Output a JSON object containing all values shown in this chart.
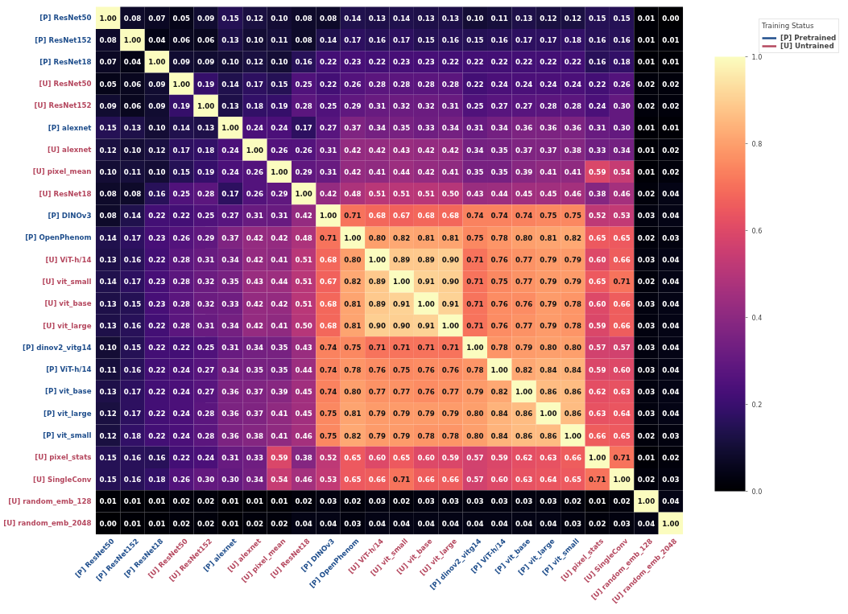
{
  "chart_data": {
    "type": "heatmap",
    "categories": [
      "[P] ResNet50",
      "[P] ResNet152",
      "[P] ResNet18",
      "[U] ResNet50",
      "[U] ResNet152",
      "[P] alexnet",
      "[U] alexnet",
      "[U] pixel_mean",
      "[U] ResNet18",
      "[P] DINOv3",
      "[P] OpenPhenom",
      "[U] ViT-h/14",
      "[U] vit_small",
      "[U] vit_base",
      "[U] vit_large",
      "[P] dinov2_vitg14",
      "[P] ViT-h/14",
      "[P] vit_base",
      "[P] vit_large",
      "[P] vit_small",
      "[U] pixel_stats",
      "[U] SingleConv",
      "[U] random_emb_128",
      "[U] random_emb_2048"
    ],
    "y_categories": [
      "[P] ResNet50",
      "[P] ResNet152",
      "[P] ResNet18",
      "[U] ResNet50",
      "[U] ResNet152",
      "[P] alexnet",
      "[U] alexnet",
      "[U] pixel_mean",
      "[U] ResNet18",
      "[P] DINOv3",
      "[P] OpenPhenom",
      "[U] ViT-h/14",
      "[U] vit_small",
      "[U] vit_base",
      "[U] vit_large",
      "[P] dinov2_vitg14",
      "[P] ViT-h/14",
      "[P] vit_base",
      "[P] vit_large",
      "[P] vit_small",
      "[U] pixel_stats",
      "[U] SingleConv",
      "[U] random_emb_128",
      "[U] random_emb_2048"
    ],
    "colors": [
      "#1f4e8c",
      "#1f4e8c",
      "#1f4e8c",
      "#b5485f",
      "#b5485f",
      "#1f4e8c",
      "#b5485f",
      "#b5485f",
      "#b5485f",
      "#1f4e8c",
      "#1f4e8c",
      "#b5485f",
      "#b5485f",
      "#b5485f",
      "#b5485f",
      "#1f4e8c",
      "#1f4e8c",
      "#1f4e8c",
      "#1f4e8c",
      "#1f4e8c",
      "#b5485f",
      "#b5485f",
      "#b5485f",
      "#b5485f"
    ],
    "annotations": [
      "[P] Pretrained",
      "[U] Untrained"
    ],
    "legend_title": "Training Status",
    "data_labels": true,
    "cell_labels": [
      [
        "1.00",
        "0.08",
        "0.07",
        "0.05",
        "0.09",
        "0.15",
        "0.12",
        "0.10",
        "0.08",
        "0.08",
        "0.14",
        "0.13",
        "0.14",
        "0.13",
        "0.13",
        "0.10",
        "0.11",
        "0.13",
        "0.12",
        "0.12",
        "0.15",
        "0.15",
        "0.01",
        "0.00"
      ],
      [
        "0.08",
        "1.00",
        "0.04",
        "0.06",
        "0.06",
        "0.13",
        "0.10",
        "0.11",
        "0.08",
        "0.14",
        "0.17",
        "0.16",
        "0.17",
        "0.15",
        "0.16",
        "0.15",
        "0.16",
        "0.17",
        "0.17",
        "0.18",
        "0.16",
        "0.16",
        "0.01",
        "0.01"
      ],
      [
        "0.07",
        "0.04",
        "1.00",
        "0.09",
        "0.09",
        "0.10",
        "0.12",
        "0.10",
        "0.16",
        "0.22",
        "0.23",
        "0.22",
        "0.23",
        "0.23",
        "0.22",
        "0.22",
        "0.22",
        "0.22",
        "0.22",
        "0.22",
        "0.16",
        "0.18",
        "0.01",
        "0.01"
      ],
      [
        "0.05",
        "0.06",
        "0.09",
        "1.00",
        "0.19",
        "0.14",
        "0.17",
        "0.15",
        "0.25",
        "0.22",
        "0.26",
        "0.28",
        "0.28",
        "0.28",
        "0.28",
        "0.22",
        "0.24",
        "0.24",
        "0.24",
        "0.24",
        "0.22",
        "0.26",
        "0.02",
        "0.02"
      ],
      [
        "0.09",
        "0.06",
        "0.09",
        "0.19",
        "1.00",
        "0.13",
        "0.18",
        "0.19",
        "0.28",
        "0.25",
        "0.29",
        "0.31",
        "0.32",
        "0.32",
        "0.31",
        "0.25",
        "0.27",
        "0.27",
        "0.28",
        "0.28",
        "0.24",
        "0.30",
        "0.02",
        "0.02"
      ],
      [
        "0.15",
        "0.13",
        "0.10",
        "0.14",
        "0.13",
        "1.00",
        "0.24",
        "0.24",
        "0.17",
        "0.27",
        "0.37",
        "0.34",
        "0.35",
        "0.33",
        "0.34",
        "0.31",
        "0.34",
        "0.36",
        "0.36",
        "0.36",
        "0.31",
        "0.30",
        "0.01",
        "0.01"
      ],
      [
        "0.12",
        "0.10",
        "0.12",
        "0.17",
        "0.18",
        "0.24",
        "1.00",
        "0.26",
        "0.26",
        "0.31",
        "0.42",
        "0.42",
        "0.43",
        "0.42",
        "0.42",
        "0.34",
        "0.35",
        "0.37",
        "0.37",
        "0.38",
        "0.33",
        "0.34",
        "0.01",
        "0.02"
      ],
      [
        "0.10",
        "0.11",
        "0.10",
        "0.15",
        "0.19",
        "0.24",
        "0.26",
        "1.00",
        "0.29",
        "0.31",
        "0.42",
        "0.41",
        "0.44",
        "0.42",
        "0.41",
        "0.35",
        "0.35",
        "0.39",
        "0.41",
        "0.41",
        "0.59",
        "0.54",
        "0.01",
        "0.02"
      ],
      [
        "0.08",
        "0.08",
        "0.16",
        "0.25",
        "0.28",
        "0.17",
        "0.26",
        "0.29",
        "1.00",
        "0.42",
        "0.48",
        "0.51",
        "0.51",
        "0.51",
        "0.50",
        "0.43",
        "0.44",
        "0.45",
        "0.45",
        "0.46",
        "0.38",
        "0.46",
        "0.02",
        "0.04"
      ],
      [
        "0.08",
        "0.14",
        "0.22",
        "0.22",
        "0.25",
        "0.27",
        "0.31",
        "0.31",
        "0.42",
        "1.00",
        "0.71",
        "0.68",
        "0.67",
        "0.68",
        "0.68",
        "0.74",
        "0.74",
        "0.74",
        "0.75",
        "0.75",
        "0.52",
        "0.53",
        "0.03",
        "0.04"
      ],
      [
        "0.14",
        "0.17",
        "0.23",
        "0.26",
        "0.29",
        "0.37",
        "0.42",
        "0.42",
        "0.48",
        "0.71",
        "1.00",
        "0.80",
        "0.82",
        "0.81",
        "0.81",
        "0.75",
        "0.78",
        "0.80",
        "0.81",
        "0.82",
        "0.65",
        "0.65",
        "0.02",
        "0.03"
      ],
      [
        "0.13",
        "0.16",
        "0.22",
        "0.28",
        "0.31",
        "0.34",
        "0.42",
        "0.41",
        "0.51",
        "0.68",
        "0.80",
        "1.00",
        "0.89",
        "0.89",
        "0.90",
        "0.71",
        "0.76",
        "0.77",
        "0.79",
        "0.79",
        "0.60",
        "0.66",
        "0.03",
        "0.04"
      ],
      [
        "0.14",
        "0.17",
        "0.23",
        "0.28",
        "0.32",
        "0.35",
        "0.43",
        "0.44",
        "0.51",
        "0.67",
        "0.82",
        "0.89",
        "1.00",
        "0.91",
        "0.90",
        "0.71",
        "0.75",
        "0.77",
        "0.79",
        "0.79",
        "0.65",
        "0.71",
        "0.02",
        "0.04"
      ],
      [
        "0.13",
        "0.15",
        "0.23",
        "0.28",
        "0.32",
        "0.33",
        "0.42",
        "0.42",
        "0.51",
        "0.68",
        "0.81",
        "0.89",
        "0.91",
        "1.00",
        "0.91",
        "0.71",
        "0.76",
        "0.76",
        "0.79",
        "0.78",
        "0.60",
        "0.66",
        "0.03",
        "0.04"
      ],
      [
        "0.13",
        "0.16",
        "0.22",
        "0.28",
        "0.31",
        "0.34",
        "0.42",
        "0.41",
        "0.50",
        "0.68",
        "0.81",
        "0.90",
        "0.90",
        "0.91",
        "1.00",
        "0.71",
        "0.76",
        "0.77",
        "0.79",
        "0.78",
        "0.59",
        "0.66",
        "0.03",
        "0.04"
      ],
      [
        "0.10",
        "0.15",
        "0.22",
        "0.22",
        "0.25",
        "0.31",
        "0.34",
        "0.35",
        "0.43",
        "0.74",
        "0.75",
        "0.71",
        "0.71",
        "0.71",
        "0.71",
        "1.00",
        "0.78",
        "0.79",
        "0.80",
        "0.80",
        "0.57",
        "0.57",
        "0.03",
        "0.04"
      ],
      [
        "0.11",
        "0.16",
        "0.22",
        "0.24",
        "0.27",
        "0.34",
        "0.35",
        "0.35",
        "0.44",
        "0.74",
        "0.78",
        "0.76",
        "0.75",
        "0.76",
        "0.76",
        "0.78",
        "1.00",
        "0.82",
        "0.84",
        "0.84",
        "0.59",
        "0.60",
        "0.03",
        "0.04"
      ],
      [
        "0.13",
        "0.17",
        "0.22",
        "0.24",
        "0.27",
        "0.36",
        "0.37",
        "0.39",
        "0.45",
        "0.74",
        "0.80",
        "0.77",
        "0.77",
        "0.76",
        "0.77",
        "0.79",
        "0.82",
        "1.00",
        "0.86",
        "0.86",
        "0.62",
        "0.63",
        "0.03",
        "0.04"
      ],
      [
        "0.12",
        "0.17",
        "0.22",
        "0.24",
        "0.28",
        "0.36",
        "0.37",
        "0.41",
        "0.45",
        "0.75",
        "0.81",
        "0.79",
        "0.79",
        "0.79",
        "0.79",
        "0.80",
        "0.84",
        "0.86",
        "1.00",
        "0.86",
        "0.63",
        "0.64",
        "0.03",
        "0.04"
      ],
      [
        "0.12",
        "0.18",
        "0.22",
        "0.24",
        "0.28",
        "0.36",
        "0.38",
        "0.41",
        "0.46",
        "0.75",
        "0.82",
        "0.79",
        "0.79",
        "0.78",
        "0.78",
        "0.80",
        "0.84",
        "0.86",
        "0.86",
        "1.00",
        "0.66",
        "0.65",
        "0.02",
        "0.03"
      ],
      [
        "0.15",
        "0.16",
        "0.16",
        "0.22",
        "0.24",
        "0.31",
        "0.33",
        "0.59",
        "0.38",
        "0.52",
        "0.65",
        "0.60",
        "0.65",
        "0.60",
        "0.59",
        "0.57",
        "0.59",
        "0.62",
        "0.63",
        "0.66",
        "1.00",
        "0.71",
        "0.01",
        "0.02"
      ],
      [
        "0.15",
        "0.16",
        "0.18",
        "0.26",
        "0.30",
        "0.30",
        "0.34",
        "0.54",
        "0.46",
        "0.53",
        "0.65",
        "0.66",
        "0.71",
        "0.66",
        "0.66",
        "0.57",
        "0.60",
        "0.63",
        "0.64",
        "0.65",
        "0.71",
        "1.00",
        "0.02",
        "0.03"
      ],
      [
        "0.01",
        "0.01",
        "0.01",
        "0.02",
        "0.02",
        "0.01",
        "0.01",
        "0.01",
        "0.02",
        "0.03",
        "0.02",
        "0.03",
        "0.02",
        "0.03",
        "0.03",
        "0.03",
        "0.03",
        "0.03",
        "0.03",
        "0.02",
        "0.01",
        "0.02",
        "1.00",
        "0.04"
      ],
      [
        "0.00",
        "0.01",
        "0.01",
        "0.02",
        "0.02",
        "0.01",
        "0.02",
        "0.02",
        "0.04",
        "0.04",
        "0.03",
        "0.04",
        "0.04",
        "0.04",
        "0.04",
        "0.04",
        "0.04",
        "0.04",
        "0.04",
        "0.03",
        "0.02",
        "0.03",
        "0.04",
        "1.00"
      ]
    ],
    "clim": [
      0,
      1
    ],
    "cticks": [
      {
        "value": 0,
        "label": "0.0"
      },
      {
        "value": 0.2,
        "label": "0.2"
      },
      {
        "value": 0.4,
        "label": "0.4"
      },
      {
        "value": 0.6,
        "label": "0.6"
      },
      {
        "value": 0.8,
        "label": "0.8"
      },
      {
        "value": 1,
        "label": "1.0"
      }
    ],
    "cells": [
      [
        1.0,
        0.08,
        0.07,
        0.05,
        0.09,
        0.15,
        0.12,
        0.1,
        0.08,
        0.08,
        0.14,
        0.13,
        0.14,
        0.13,
        0.13,
        0.1,
        0.11,
        0.13,
        0.12,
        0.12,
        0.15,
        0.15,
        0.01,
        0.0
      ],
      [
        0.08,
        1.0,
        0.04,
        0.06,
        0.06,
        0.13,
        0.1,
        0.11,
        0.08,
        0.14,
        0.17,
        0.16,
        0.17,
        0.15,
        0.16,
        0.15,
        0.16,
        0.17,
        0.17,
        0.18,
        0.16,
        0.16,
        0.01,
        0.01
      ],
      [
        0.07,
        0.04,
        1.0,
        0.09,
        0.09,
        0.1,
        0.12,
        0.1,
        0.16,
        0.22,
        0.23,
        0.22,
        0.23,
        0.23,
        0.22,
        0.22,
        0.22,
        0.22,
        0.22,
        0.22,
        0.16,
        0.18,
        0.01,
        0.01
      ],
      [
        0.05,
        0.06,
        0.09,
        1.0,
        0.19,
        0.14,
        0.17,
        0.15,
        0.25,
        0.22,
        0.26,
        0.28,
        0.28,
        0.28,
        0.28,
        0.22,
        0.24,
        0.24,
        0.24,
        0.24,
        0.22,
        0.26,
        0.02,
        0.02
      ],
      [
        0.09,
        0.06,
        0.09,
        0.19,
        1.0,
        0.13,
        0.18,
        0.19,
        0.28,
        0.25,
        0.29,
        0.31,
        0.32,
        0.32,
        0.31,
        0.25,
        0.27,
        0.27,
        0.28,
        0.28,
        0.24,
        0.3,
        0.02,
        0.02
      ],
      [
        0.15,
        0.13,
        0.1,
        0.14,
        0.13,
        1.0,
        0.24,
        0.24,
        0.17,
        0.27,
        0.37,
        0.34,
        0.35,
        0.33,
        0.34,
        0.31,
        0.34,
        0.36,
        0.36,
        0.36,
        0.31,
        0.3,
        0.01,
        0.01
      ],
      [
        0.12,
        0.1,
        0.12,
        0.17,
        0.18,
        0.24,
        1.0,
        0.26,
        0.26,
        0.31,
        0.42,
        0.42,
        0.43,
        0.42,
        0.42,
        0.34,
        0.35,
        0.37,
        0.37,
        0.38,
        0.33,
        0.34,
        0.01,
        0.02
      ],
      [
        0.1,
        0.11,
        0.1,
        0.15,
        0.19,
        0.24,
        0.26,
        1.0,
        0.29,
        0.31,
        0.42,
        0.41,
        0.44,
        0.42,
        0.41,
        0.35,
        0.35,
        0.39,
        0.41,
        0.41,
        0.59,
        0.54,
        0.01,
        0.02
      ],
      [
        0.08,
        0.08,
        0.16,
        0.25,
        0.28,
        0.17,
        0.26,
        0.29,
        1.0,
        0.42,
        0.48,
        0.51,
        0.51,
        0.51,
        0.5,
        0.43,
        0.44,
        0.45,
        0.45,
        0.46,
        0.38,
        0.46,
        0.02,
        0.04
      ],
      [
        0.08,
        0.14,
        0.22,
        0.22,
        0.25,
        0.27,
        0.31,
        0.31,
        0.42,
        1.0,
        0.71,
        0.68,
        0.67,
        0.68,
        0.68,
        0.74,
        0.74,
        0.74,
        0.75,
        0.75,
        0.52,
        0.53,
        0.03,
        0.04
      ],
      [
        0.14,
        0.17,
        0.23,
        0.26,
        0.29,
        0.37,
        0.42,
        0.42,
        0.48,
        0.71,
        1.0,
        0.8,
        0.82,
        0.81,
        0.81,
        0.75,
        0.78,
        0.8,
        0.81,
        0.82,
        0.65,
        0.65,
        0.02,
        0.03
      ],
      [
        0.13,
        0.16,
        0.22,
        0.28,
        0.31,
        0.34,
        0.42,
        0.41,
        0.51,
        0.68,
        0.8,
        1.0,
        0.89,
        0.89,
        0.9,
        0.71,
        0.76,
        0.77,
        0.79,
        0.79,
        0.6,
        0.66,
        0.03,
        0.04
      ],
      [
        0.14,
        0.17,
        0.23,
        0.28,
        0.32,
        0.35,
        0.43,
        0.44,
        0.51,
        0.67,
        0.82,
        0.89,
        1.0,
        0.91,
        0.9,
        0.71,
        0.75,
        0.77,
        0.79,
        0.79,
        0.65,
        0.71,
        0.02,
        0.04
      ],
      [
        0.13,
        0.15,
        0.23,
        0.28,
        0.32,
        0.33,
        0.42,
        0.42,
        0.51,
        0.68,
        0.81,
        0.89,
        0.91,
        1.0,
        0.91,
        0.71,
        0.76,
        0.76,
        0.79,
        0.78,
        0.6,
        0.66,
        0.03,
        0.04
      ],
      [
        0.13,
        0.16,
        0.22,
        0.28,
        0.31,
        0.34,
        0.42,
        0.41,
        0.5,
        0.68,
        0.81,
        0.9,
        0.9,
        0.91,
        1.0,
        0.71,
        0.76,
        0.77,
        0.79,
        0.78,
        0.59,
        0.66,
        0.03,
        0.04
      ],
      [
        0.1,
        0.15,
        0.22,
        0.22,
        0.25,
        0.31,
        0.34,
        0.35,
        0.43,
        0.74,
        0.75,
        0.71,
        0.71,
        0.71,
        0.71,
        1.0,
        0.78,
        0.79,
        0.8,
        0.8,
        0.57,
        0.57,
        0.03,
        0.04
      ],
      [
        0.11,
        0.16,
        0.22,
        0.24,
        0.27,
        0.34,
        0.35,
        0.35,
        0.44,
        0.74,
        0.78,
        0.76,
        0.75,
        0.76,
        0.76,
        0.78,
        1.0,
        0.82,
        0.84,
        0.84,
        0.59,
        0.6,
        0.03,
        0.04
      ],
      [
        0.13,
        0.17,
        0.22,
        0.24,
        0.27,
        0.36,
        0.37,
        0.39,
        0.45,
        0.74,
        0.8,
        0.77,
        0.77,
        0.76,
        0.77,
        0.79,
        0.82,
        1.0,
        0.86,
        0.86,
        0.62,
        0.63,
        0.03,
        0.04
      ],
      [
        0.12,
        0.17,
        0.22,
        0.24,
        0.28,
        0.36,
        0.37,
        0.41,
        0.45,
        0.75,
        0.81,
        0.79,
        0.79,
        0.79,
        0.79,
        0.8,
        0.84,
        0.86,
        1.0,
        0.86,
        0.63,
        0.64,
        0.03,
        0.04
      ],
      [
        0.12,
        0.18,
        0.22,
        0.24,
        0.28,
        0.36,
        0.38,
        0.41,
        0.46,
        0.75,
        0.82,
        0.79,
        0.79,
        0.78,
        0.78,
        0.8,
        0.84,
        0.86,
        0.86,
        1.0,
        0.66,
        0.65,
        0.02,
        0.03
      ],
      [
        0.15,
        0.16,
        0.16,
        0.22,
        0.24,
        0.31,
        0.33,
        0.59,
        0.38,
        0.52,
        0.65,
        0.6,
        0.65,
        0.6,
        0.59,
        0.57,
        0.59,
        0.62,
        0.63,
        0.66,
        1.0,
        0.71,
        0.01,
        0.02
      ],
      [
        0.15,
        0.16,
        0.18,
        0.26,
        0.3,
        0.3,
        0.34,
        0.54,
        0.46,
        0.53,
        0.65,
        0.66,
        0.71,
        0.66,
        0.66,
        0.57,
        0.6,
        0.63,
        0.64,
        0.65,
        0.71,
        1.0,
        0.02,
        0.03
      ],
      [
        0.01,
        0.01,
        0.01,
        0.02,
        0.02,
        0.01,
        0.01,
        0.01,
        0.02,
        0.03,
        0.02,
        0.03,
        0.02,
        0.03,
        0.03,
        0.03,
        0.03,
        0.03,
        0.03,
        0.02,
        0.01,
        0.02,
        1.0,
        0.04
      ],
      [
        0.0,
        0.01,
        0.01,
        0.02,
        0.02,
        0.01,
        0.02,
        0.02,
        0.04,
        0.04,
        0.03,
        0.04,
        0.04,
        0.04,
        0.04,
        0.04,
        0.04,
        0.04,
        0.04,
        0.03,
        0.02,
        0.03,
        0.04,
        1.0
      ]
    ]
  }
}
